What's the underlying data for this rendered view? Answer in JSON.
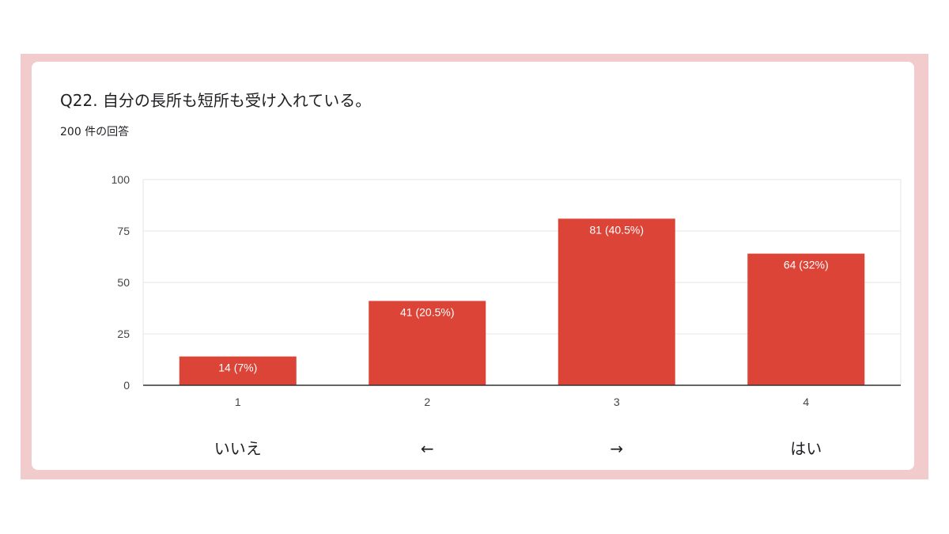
{
  "question": {
    "title": "Q22.  自分の長所も短所も受け入れている。",
    "response_count": "200 件の回答"
  },
  "colors": {
    "frame": "#f2cccc",
    "bar": "#db4437",
    "grid": "#e6e6e6",
    "axis": "#333333"
  },
  "chart_data": {
    "type": "bar",
    "categories": [
      "1",
      "2",
      "3",
      "4"
    ],
    "values": [
      14,
      41,
      81,
      64
    ],
    "data_labels": [
      "14 (7%)",
      "41 (20.5%)",
      "81 (40.5%)",
      "64 (32%)"
    ],
    "title": "",
    "xlabel": "",
    "ylabel": "",
    "ylim": [
      0,
      100
    ],
    "yticks": [
      0,
      25,
      50,
      75,
      100
    ],
    "grid": true,
    "legend": "none"
  },
  "scale_labels": [
    "いいえ",
    "←",
    "→",
    "はい"
  ]
}
